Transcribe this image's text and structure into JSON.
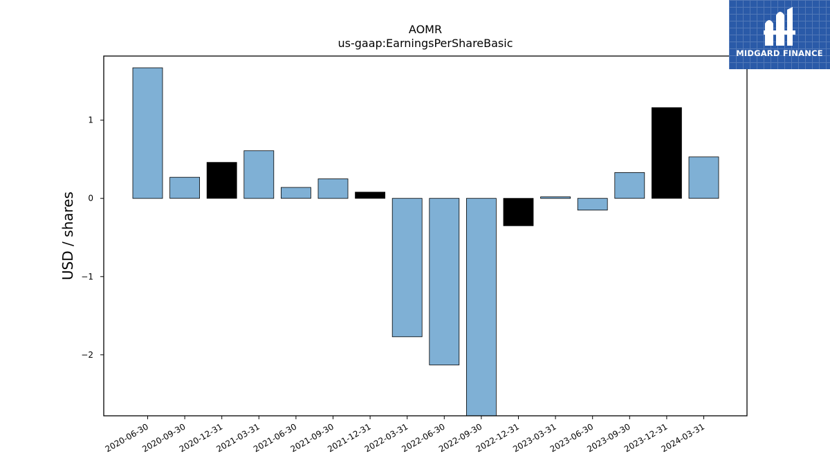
{
  "chart_data": {
    "type": "bar",
    "title": "AOMR",
    "subtitle": "us-gaap:EarningsPerShareBasic",
    "ylabel": "USD / shares",
    "xlabel": "",
    "ylim": [
      -2.78,
      1.82
    ],
    "yticks": [
      1,
      0,
      -1,
      -2
    ],
    "ytick_labels": [
      "1",
      "0",
      "−1",
      "−2"
    ],
    "grid": false,
    "categories": [
      "2020-06-30",
      "2020-09-30",
      "2020-12-31",
      "2021-03-31",
      "2021-06-30",
      "2021-09-30",
      "2021-12-31",
      "2022-03-31",
      "2022-06-30",
      "2022-09-30",
      "2022-12-31",
      "2023-03-31",
      "2023-06-30",
      "2023-09-30",
      "2023-12-31",
      "2024-03-31"
    ],
    "values": [
      1.67,
      0.27,
      0.46,
      0.61,
      0.14,
      0.25,
      0.08,
      -1.77,
      -2.13,
      -2.81,
      -0.35,
      0.02,
      -0.15,
      0.33,
      1.16,
      0.53
    ],
    "bar_colors": [
      "#7fb0d5",
      "#7fb0d5",
      "#000000",
      "#7fb0d5",
      "#7fb0d5",
      "#7fb0d5",
      "#000000",
      "#7fb0d5",
      "#7fb0d5",
      "#7fb0d5",
      "#000000",
      "#7fb0d5",
      "#7fb0d5",
      "#7fb0d5",
      "#000000",
      "#7fb0d5"
    ]
  },
  "logo": {
    "text": "MIDGARD FINANCE",
    "background": "#2a5aa8"
  }
}
